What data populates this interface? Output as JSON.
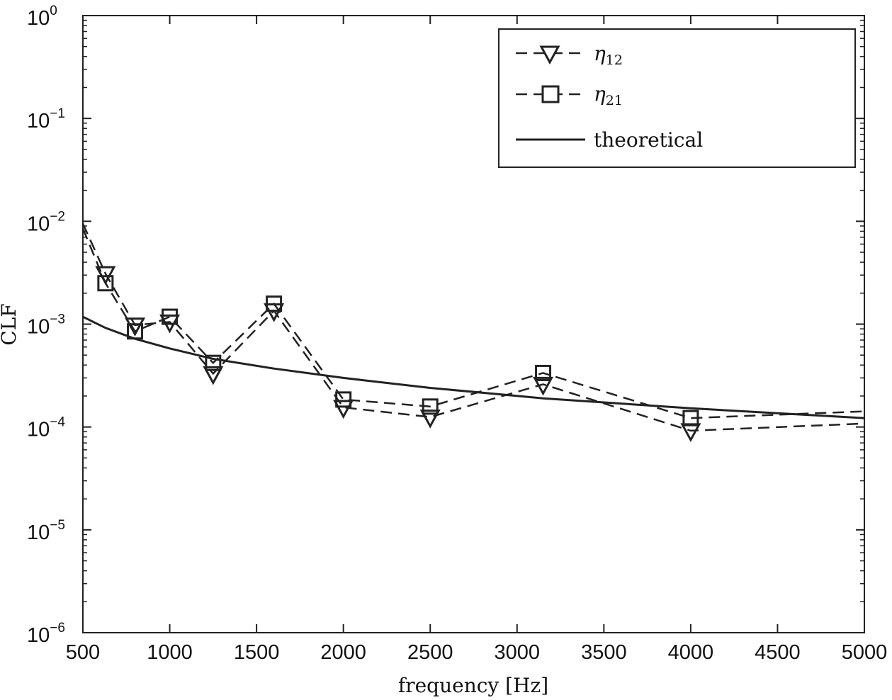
{
  "chart_data": {
    "type": "line",
    "title": "",
    "xlabel": "frequency [Hz]",
    "ylabel": "CLF",
    "xlim": [
      500,
      5000
    ],
    "ylim": [
      1e-06,
      1
    ],
    "yscale": "log",
    "grid": false,
    "legend_position": "top-right",
    "x_ticks": [
      {
        "value": 500,
        "label": "500"
      },
      {
        "value": 1000,
        "label": "1000"
      },
      {
        "value": 1500,
        "label": "1500"
      },
      {
        "value": 2000,
        "label": "2000"
      },
      {
        "value": 2500,
        "label": "2500"
      },
      {
        "value": 3000,
        "label": "3000"
      },
      {
        "value": 3500,
        "label": "3500"
      },
      {
        "value": 4000,
        "label": "4000"
      },
      {
        "value": 4500,
        "label": "4500"
      },
      {
        "value": 5000,
        "label": "5000"
      }
    ],
    "y_ticks": [
      {
        "value": 1,
        "base": "10",
        "exp": "0"
      },
      {
        "value": 0.1,
        "base": "10",
        "exp": "−1"
      },
      {
        "value": 0.01,
        "base": "10",
        "exp": "−2"
      },
      {
        "value": 0.001,
        "base": "10",
        "exp": "−3"
      },
      {
        "value": 0.0001,
        "base": "10",
        "exp": "−4"
      },
      {
        "value": 1e-05,
        "base": "10",
        "exp": "−5"
      },
      {
        "value": 1e-06,
        "base": "10",
        "exp": "−6"
      }
    ],
    "series": [
      {
        "name": "eta12",
        "label_symbol": "η",
        "label_sub": "12",
        "style": "dashed",
        "marker": "triangle-down",
        "x": [
          500,
          630,
          800,
          1000,
          1250,
          1600,
          2000,
          2500,
          3150,
          4000,
          5000
        ],
        "y": [
          0.0095,
          0.0031,
          0.00098,
          0.00105,
          0.00033,
          0.00135,
          0.000155,
          0.000125,
          0.00026,
          9.2e-05,
          0.000108
        ],
        "marker_x": [
          630,
          800,
          1000,
          1250,
          1600,
          2000,
          2500,
          3150,
          4000
        ]
      },
      {
        "name": "eta21",
        "label_symbol": "η",
        "label_sub": "21",
        "style": "dashed",
        "marker": "square",
        "x": [
          500,
          630,
          800,
          1000,
          1250,
          1600,
          2000,
          2500,
          3150,
          4000,
          5000
        ],
        "y": [
          0.0085,
          0.0025,
          0.00085,
          0.00118,
          0.00042,
          0.00158,
          0.000185,
          0.000158,
          0.000335,
          0.000122,
          0.000142
        ],
        "marker_x": [
          630,
          800,
          1000,
          1250,
          1600,
          2000,
          2500,
          3150,
          4000
        ]
      },
      {
        "name": "theoretical",
        "label": "theoretical",
        "style": "solid",
        "marker": "none",
        "x": [
          500,
          630,
          800,
          1000,
          1250,
          1600,
          2000,
          2500,
          3150,
          4000,
          5000
        ],
        "y": [
          0.00118,
          0.00092,
          0.00072,
          0.00058,
          0.00046,
          0.00037,
          0.0003,
          0.00024,
          0.00019,
          0.000152,
          0.000122
        ]
      }
    ]
  }
}
